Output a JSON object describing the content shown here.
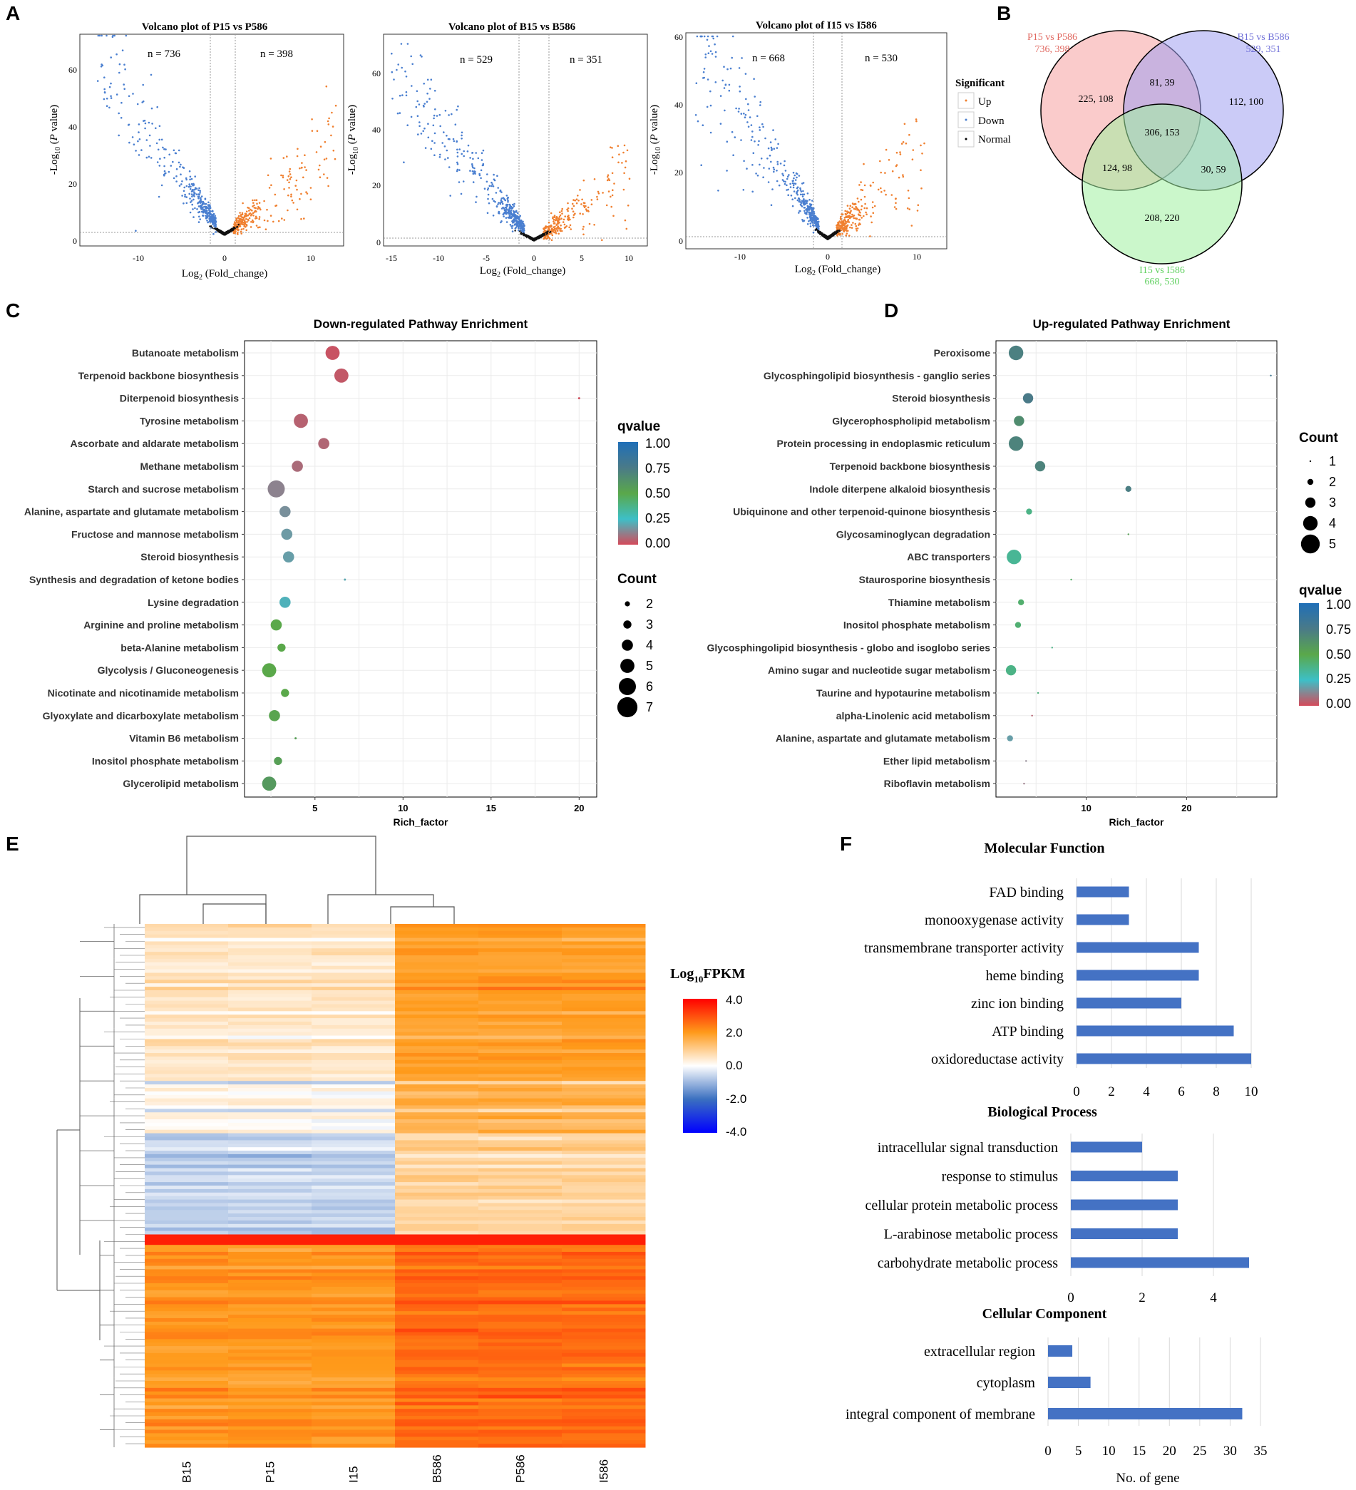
{
  "panel_letters": {
    "a": "A",
    "b": "B",
    "c": "C",
    "d": "D",
    "e": "E",
    "f": "F"
  },
  "volcano": {
    "xlabel_main": "Log",
    "xlabel_sub": "2",
    "xlabel_rest": " (Fold_change)",
    "ylabel_a": "-Log",
    "ylabel_sub": "10",
    "ylabel_b": " (",
    "ylabel_p": "P",
    "ylabel_c": " value)",
    "plots": [
      {
        "title": "Volcano plot of P15 vs P586",
        "down_label": "n = 736",
        "up_label": "n = 398",
        "xticks": [
          "-10",
          "0",
          "10"
        ],
        "yticks": [
          "0",
          "20",
          "40",
          "60"
        ]
      },
      {
        "title": "Volcano plot of B15 vs B586",
        "down_label": "n = 529",
        "up_label": "n = 351",
        "xticks": [
          "-15",
          "-10",
          "-5",
          "0",
          "5",
          "10"
        ],
        "yticks": [
          "0",
          "20",
          "40",
          "60"
        ]
      },
      {
        "title": "Volcano plot of I15 vs I586",
        "down_label": "n = 668",
        "up_label": "n = 530",
        "xticks": [
          "-10",
          "0",
          "10"
        ],
        "yticks": [
          "0",
          "20",
          "40",
          "60"
        ]
      }
    ],
    "legend": {
      "title": "Significant",
      "items": [
        "Up",
        "Down",
        "Normal"
      ]
    }
  },
  "venn": {
    "sets": [
      {
        "name": "P15 vs P586",
        "counts": "736, 398",
        "color": "#e0675f"
      },
      {
        "name": "B15 vs B586",
        "counts": "529, 351",
        "color": "#6f6fd8"
      },
      {
        "name": "I15 vs I586",
        "counts": "668, 530",
        "color": "#5fd05f"
      }
    ],
    "regions": {
      "p_only": "225, 108",
      "b_only": "112, 100",
      "i_only": "208, 220",
      "pb": "81, 39",
      "pi": "124, 98",
      "bi": "30, 59",
      "all": "306, 153"
    }
  },
  "chart_data": [
    {
      "type": "scatter",
      "title": "Down-regulated Pathway Enrichment",
      "xlabel": "Rich_factor",
      "xlim": [
        1,
        21
      ],
      "xticks": [
        "5",
        "10",
        "15",
        "20"
      ],
      "categories": [
        "Butanoate metabolism",
        "Terpenoid backbone biosynthesis",
        "Diterpenoid biosynthesis",
        "Tyrosine metabolism",
        "Ascorbate and aldarate metabolism",
        "Methane metabolism",
        "Starch and sucrose metabolism",
        "Alanine, aspartate and glutamate metabolism",
        "Fructose and mannose metabolism",
        "Steroid biosynthesis",
        "Synthesis and degradation of ketone bodies",
        "Lysine degradation",
        "Arginine and proline metabolism",
        "beta-Alanine metabolism",
        "Glycolysis / Gluconeogenesis",
        "Nicotinate and nicotinamide metabolism",
        "Glyoxylate and dicarboxylate metabolism",
        "Vitamin B6 metabolism",
        "Inositol phosphate metabolism",
        "Glycerolipid metabolism"
      ],
      "rich_factor": [
        6.0,
        6.5,
        20.0,
        4.2,
        5.5,
        4.0,
        2.8,
        3.3,
        3.4,
        3.5,
        6.7,
        3.3,
        2.8,
        3.1,
        2.4,
        3.3,
        2.7,
        3.9,
        2.9,
        2.4
      ],
      "count": [
        5,
        5,
        1,
        5,
        4,
        4,
        6,
        4,
        4,
        4,
        1,
        4,
        4,
        3,
        5,
        3,
        4,
        1,
        3,
        5
      ],
      "qvalue": [
        0.02,
        0.03,
        0.01,
        0.05,
        0.06,
        0.07,
        0.12,
        0.15,
        0.17,
        0.18,
        0.2,
        0.22,
        0.5,
        0.5,
        0.5,
        0.5,
        0.52,
        0.55,
        0.55,
        0.58
      ],
      "legend_qvalue": {
        "title": "qvalue",
        "ticks": [
          "1.00",
          "0.75",
          "0.50",
          "0.25",
          "0.00"
        ]
      },
      "legend_count": {
        "title": "Count",
        "values": [
          2,
          3,
          4,
          5,
          6,
          7
        ],
        "labels": [
          "2",
          "3",
          "4",
          "5",
          "6",
          "7"
        ]
      }
    },
    {
      "type": "scatter",
      "title": "Up-regulated Pathway Enrichment",
      "xlabel": "Rich_factor",
      "xlim": [
        1,
        29
      ],
      "xticks": [
        "10",
        "20"
      ],
      "categories": [
        "Peroxisome",
        "Glycosphingolipid biosynthesis - ganglio series",
        "Steroid biosynthesis",
        "Glycerophospholipid metabolism",
        "Protein processing in endoplasmic reticulum",
        "Terpenoid backbone biosynthesis",
        "Indole diterpene alkaloid biosynthesis",
        "Ubiquinone and other terpenoid-quinone biosynthesis",
        "Glycosaminoglycan degradation",
        "ABC transporters",
        "Staurosporine biosynthesis",
        "Thiamine metabolism",
        "Inositol phosphate metabolism",
        "Glycosphingolipid biosynthesis - globo and isoglobo series",
        "Amino sugar and nucleotide sugar metabolism",
        "Taurine and hypotaurine metabolism",
        "alpha-Linolenic acid metabolism",
        "Alanine, aspartate and glutamate metabolism",
        "Ether lipid metabolism",
        "Riboflavin metabolism"
      ],
      "rich_factor": [
        3.0,
        28.4,
        4.2,
        3.3,
        3.0,
        5.4,
        14.2,
        4.3,
        14.2,
        2.8,
        8.5,
        3.5,
        3.2,
        6.6,
        2.5,
        5.2,
        4.6,
        2.4,
        4.0,
        3.8
      ],
      "count": [
        4,
        1,
        3,
        3,
        4,
        3,
        2,
        2,
        1,
        4,
        1,
        2,
        2,
        1,
        3,
        1,
        1,
        2,
        1,
        1
      ],
      "qvalue": [
        0.72,
        0.8,
        0.75,
        0.65,
        0.7,
        0.7,
        0.73,
        0.38,
        0.55,
        0.35,
        0.45,
        0.43,
        0.42,
        0.38,
        0.38,
        0.4,
        0.05,
        0.18,
        0.12,
        0.1
      ],
      "legend_qvalue": {
        "title": "qvalue",
        "ticks": [
          "1.00",
          "0.75",
          "0.50",
          "0.25",
          "0.00"
        ]
      },
      "legend_count": {
        "title": "Count",
        "values": [
          1,
          2,
          3,
          4,
          5
        ],
        "labels": [
          "1",
          "2",
          "3",
          "4",
          "5"
        ]
      }
    },
    {
      "type": "heatmap",
      "columns": [
        "B15",
        "P15",
        "I15",
        "B586",
        "P586",
        "I586"
      ],
      "legend": {
        "title_a": "Log",
        "title_sub": "10",
        "title_b": "FPKM",
        "ticks": [
          "4.0",
          "2.0",
          "0.0",
          "-2.0",
          "-4.0"
        ],
        "range": [
          -4,
          4
        ]
      }
    },
    {
      "type": "bar",
      "title": "Molecular Function",
      "categories": [
        "FAD binding",
        "monooxygenase activity",
        "transmembrane transporter activity",
        "heme binding",
        "zinc ion binding",
        "ATP binding",
        "oxidoreductase activity"
      ],
      "values": [
        3,
        3,
        7,
        7,
        6,
        9,
        10
      ],
      "xlim": [
        0,
        10
      ],
      "xticks": [
        "0",
        "2",
        "4",
        "6",
        "8",
        "10"
      ]
    },
    {
      "type": "bar",
      "title": "Biological Process",
      "categories": [
        "intracellular signal transduction",
        "response to stimulus",
        "cellular protein metabolic process",
        "L-arabinose metabolic process",
        "carbohydrate metabolic process"
      ],
      "values": [
        2,
        3,
        3,
        3,
        5
      ],
      "xlim": [
        0,
        5
      ],
      "xticks": [
        "0",
        "2",
        "4"
      ]
    },
    {
      "type": "bar",
      "title": "Cellular Component",
      "categories": [
        "extracellular region",
        "cytoplasm",
        "integral component of membrane"
      ],
      "values": [
        4,
        7,
        32
      ],
      "xlim": [
        0,
        35
      ],
      "xticks": [
        "0",
        "5",
        "10",
        "15",
        "20",
        "25",
        "30",
        "35"
      ],
      "xlabel": "No. of gene"
    }
  ]
}
